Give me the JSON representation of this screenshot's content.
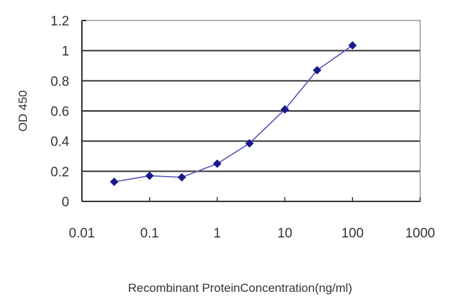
{
  "chart_data": {
    "type": "line",
    "title": "",
    "xlabel": "Recombinant ProteinConcentration(ng/ml)",
    "ylabel": "OD 450",
    "xscale": "log",
    "xlim": [
      0.01,
      1000
    ],
    "ylim": [
      0,
      1.2
    ],
    "x_ticks": [
      "0.01",
      "0.1",
      "1",
      "10",
      "100",
      "1000"
    ],
    "y_ticks": [
      "0",
      "0.2",
      "0.4",
      "0.6",
      "0.8",
      "1",
      "1.2"
    ],
    "grid": {
      "horizontal": true,
      "vertical": false
    },
    "legend": null,
    "series": [
      {
        "name": "OD 450",
        "color": "#1a1a8c",
        "marker": "diamond",
        "x": [
          0.03,
          0.1,
          0.3,
          1,
          3,
          10,
          30,
          100
        ],
        "y": [
          0.13,
          0.17,
          0.16,
          0.25,
          0.385,
          0.61,
          0.87,
          1.035
        ]
      }
    ]
  }
}
